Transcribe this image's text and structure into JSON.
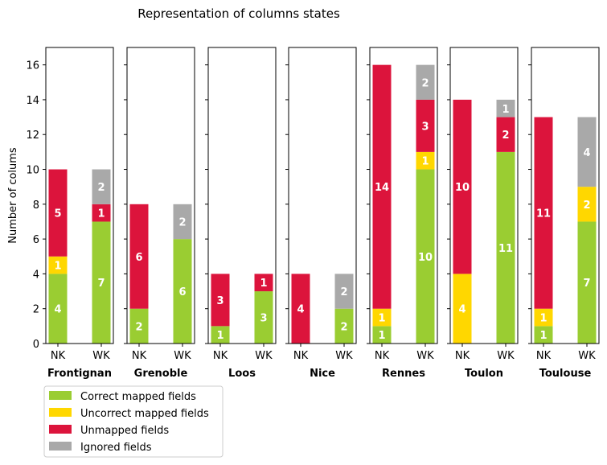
{
  "chart_data": {
    "type": "bar",
    "stacked": true,
    "title": "Representation of columns states",
    "ylabel": "Number of colums",
    "ylim": [
      0,
      17
    ],
    "yticks": [
      0,
      2,
      4,
      6,
      8,
      10,
      12,
      14,
      16
    ],
    "categories": [
      "NK",
      "WK"
    ],
    "legend_position": "bottom-left",
    "series": [
      {
        "name": "Correct mapped fields",
        "color": "#9acd32"
      },
      {
        "name": "Uncorrect mapped fields",
        "color": "#ffd700"
      },
      {
        "name": "Unmapped fields",
        "color": "#dc143c"
      },
      {
        "name": "Ignored fields",
        "color": "#a9a9a9"
      }
    ],
    "panels": [
      {
        "city": "Frontignan",
        "values": {
          "NK": [
            4,
            1,
            5,
            0
          ],
          "WK": [
            7,
            0,
            1,
            2
          ]
        }
      },
      {
        "city": "Grenoble",
        "values": {
          "NK": [
            2,
            0,
            6,
            0
          ],
          "WK": [
            6,
            0,
            0,
            2
          ]
        }
      },
      {
        "city": "Loos",
        "values": {
          "NK": [
            1,
            0,
            3,
            0
          ],
          "WK": [
            3,
            0,
            1,
            0
          ]
        }
      },
      {
        "city": "Nice",
        "values": {
          "NK": [
            0,
            0,
            4,
            0
          ],
          "WK": [
            2,
            0,
            0,
            2
          ]
        }
      },
      {
        "city": "Rennes",
        "values": {
          "NK": [
            1,
            1,
            14,
            0
          ],
          "WK": [
            10,
            1,
            3,
            2
          ]
        }
      },
      {
        "city": "Toulon",
        "values": {
          "NK": [
            0,
            4,
            10,
            0
          ],
          "WK": [
            11,
            0,
            2,
            1
          ]
        }
      },
      {
        "city": "Toulouse",
        "values": {
          "NK": [
            1,
            1,
            11,
            0
          ],
          "WK": [
            7,
            2,
            0,
            4
          ]
        }
      }
    ]
  }
}
